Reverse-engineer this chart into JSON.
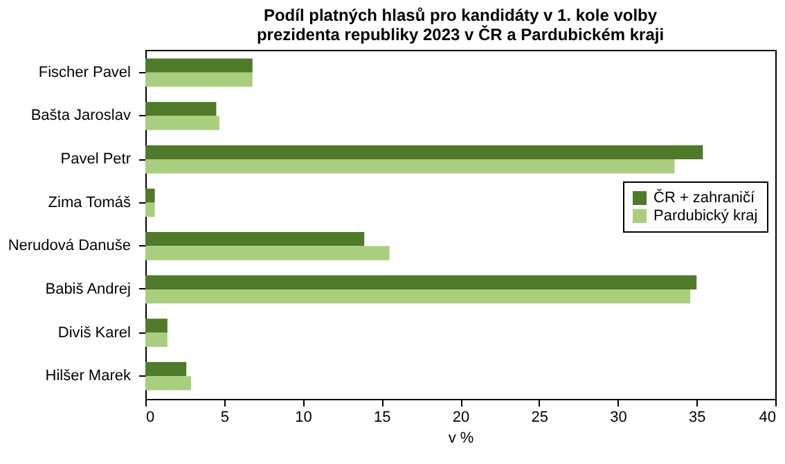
{
  "chart_data": {
    "type": "bar",
    "orientation": "horizontal",
    "title": "Podíl platných hlasů pro kandidáty v 1. kole volby\nprezidenta republiky 2023  v ČR a Pardubickém kraji",
    "xlabel": "v %",
    "categories": [
      "Fischer Pavel",
      "Bašta Jaroslav",
      "Pavel Petr",
      "Zima Tomáš",
      "Nerudová Danuše",
      "Babiš Andrej",
      "Diviš Karel",
      "Hilšer Marek"
    ],
    "series": [
      {
        "name": "ČR + zahraničí",
        "color": "#4e7a2a",
        "values": [
          6.8,
          4.5,
          35.4,
          0.6,
          13.9,
          35.0,
          1.4,
          2.6
        ]
      },
      {
        "name": "Pardubický kraj",
        "color": "#a9cf7e",
        "values": [
          6.8,
          4.7,
          33.6,
          0.6,
          15.5,
          34.6,
          1.4,
          2.9
        ]
      }
    ],
    "xlim": [
      0,
      40
    ],
    "xticks": [
      0,
      5,
      10,
      15,
      20,
      25,
      30,
      35,
      40
    ],
    "grid": false,
    "legend": "right"
  }
}
